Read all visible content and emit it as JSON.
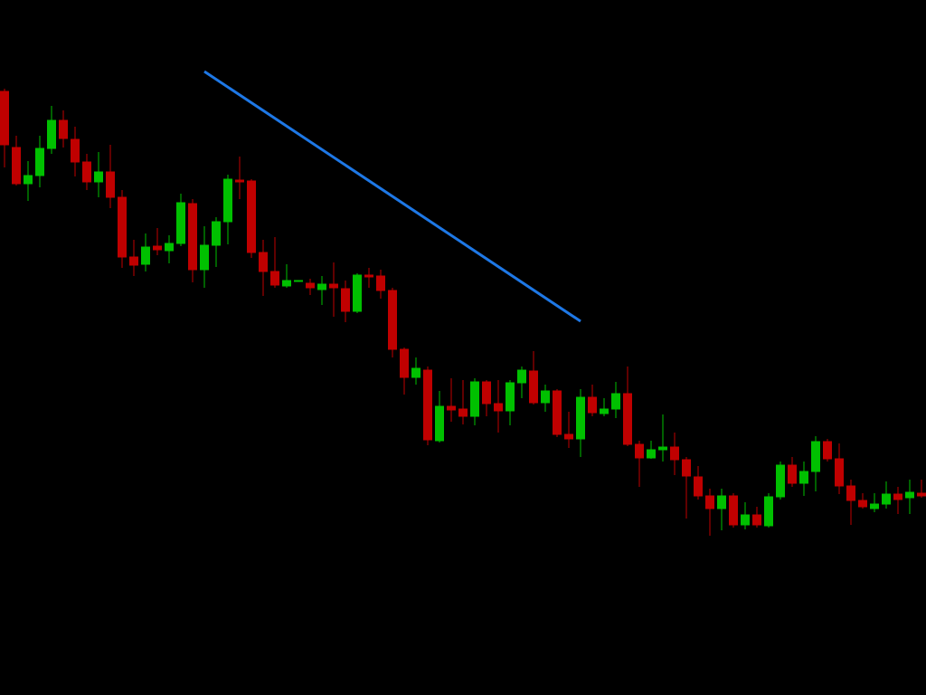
{
  "chart_data": {
    "type": "candlestick",
    "up_color": "#00c000",
    "down_color": "#c00000",
    "ylim": [
      0,
      768
    ],
    "open": [
      667,
      605,
      565,
      574,
      604,
      635,
      614,
      589,
      567,
      578,
      550,
      484,
      476,
      496,
      491,
      499,
      543,
      470,
      497,
      523,
      569,
      568,
      489,
      468,
      452,
      457,
      455,
      448,
      454,
      449,
      424,
      464,
      463,
      447,
      382,
      351,
      359,
      281,
      319,
      316,
      308,
      346,
      322,
      314,
      345,
      358,
      323,
      336,
      288,
      283,
      329,
      311,
      316,
      333,
      277,
      262,
      271,
      274,
      260,
      241,
      220,
      206,
      220,
      188,
      199,
      187,
      219,
      254,
      234,
      247,
      280,
      261,
      231,
      215,
      206,
      211,
      222,
      218,
      223
    ],
    "high": [
      670,
      618,
      590,
      618,
      651,
      646,
      628,
      598,
      600,
      608,
      558,
      503,
      510,
      516,
      508,
      554,
      548,
      518,
      528,
      575,
      595,
      570,
      503,
      506,
      476,
      458,
      460,
      463,
      478,
      458,
      466,
      472,
      470,
      450,
      384,
      373,
      363,
      336,
      350,
      348,
      350,
      348,
      348,
      348,
      363,
      380,
      343,
      338,
      313,
      338,
      343,
      328,
      346,
      363,
      281,
      281,
      310,
      290,
      263,
      253,
      228,
      228,
      223,
      213,
      208,
      223,
      258,
      263,
      258,
      286,
      283,
      278,
      238,
      223,
      223,
      236,
      230,
      238,
      238
    ],
    "low": [
      583,
      563,
      546,
      561,
      598,
      605,
      573,
      558,
      550,
      538,
      472,
      463,
      468,
      486,
      477,
      496,
      456,
      450,
      473,
      498,
      548,
      483,
      441,
      450,
      450,
      457,
      442,
      431,
      418,
      412,
      422,
      450,
      438,
      373,
      332,
      343,
      276,
      279,
      302,
      299,
      298,
      308,
      290,
      298,
      328,
      321,
      313,
      285,
      273,
      263,
      308,
      308,
      306,
      275,
      230,
      261,
      258,
      243,
      195,
      216,
      176,
      182,
      185,
      183,
      185,
      185,
      216,
      230,
      220,
      225,
      258,
      222,
      188,
      206,
      202,
      206,
      200,
      200,
      218
    ],
    "close": [
      608,
      565,
      574,
      604,
      635,
      615,
      589,
      567,
      578,
      550,
      484,
      475,
      495,
      492,
      499,
      544,
      470,
      497,
      523,
      570,
      567,
      489,
      468,
      453,
      458,
      458,
      450,
      454,
      450,
      424,
      464,
      462,
      447,
      382,
      351,
      361,
      282,
      319,
      315,
      308,
      346,
      322,
      314,
      345,
      359,
      323,
      336,
      288,
      283,
      329,
      312,
      316,
      333,
      277,
      262,
      271,
      274,
      260,
      242,
      220,
      206,
      220,
      188,
      199,
      188,
      219,
      254,
      234,
      247,
      280,
      261,
      231,
      215,
      208,
      211,
      222,
      216,
      224,
      220
    ],
    "trendline": {
      "x": [
        17,
        49
      ],
      "values": [
        689,
        413
      ],
      "color": "#1e78e6"
    }
  }
}
